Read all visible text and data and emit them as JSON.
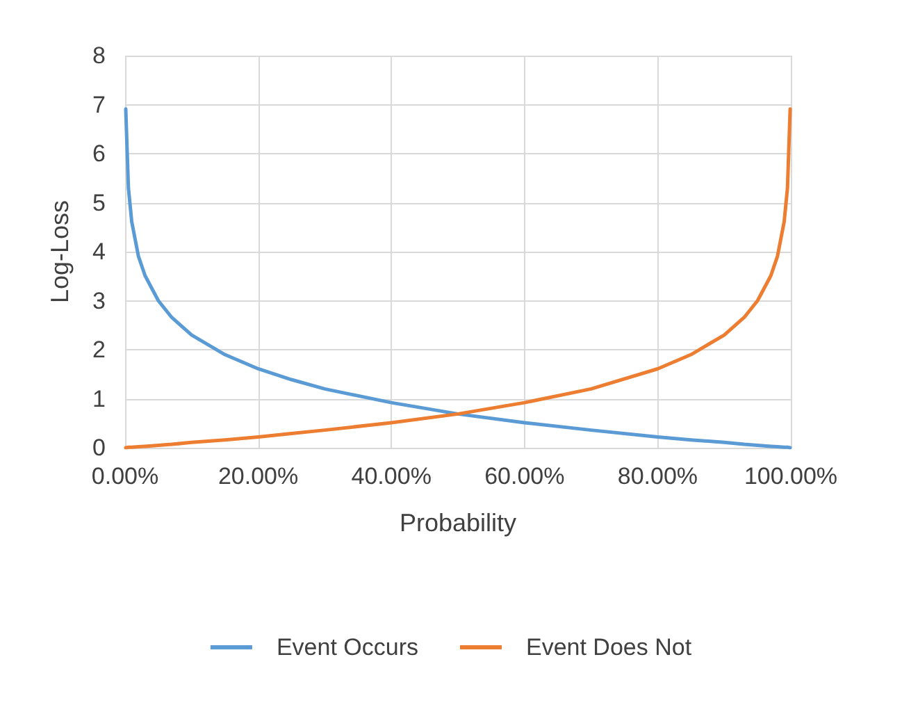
{
  "chart_data": {
    "type": "line",
    "xlabel": "Probability",
    "ylabel": "Log-Loss",
    "x": [
      0.1,
      0.5,
      1,
      2,
      3,
      5,
      7,
      10,
      15,
      20,
      25,
      30,
      40,
      50,
      60,
      70,
      80,
      85,
      90,
      93,
      95,
      97,
      98,
      99,
      99.5,
      99.9
    ],
    "series": [
      {
        "name": "Event Occurs",
        "color": "#5b9bd5",
        "values": [
          6.91,
          5.3,
          4.61,
          3.91,
          3.51,
          3.0,
          2.66,
          2.3,
          1.9,
          1.61,
          1.39,
          1.2,
          0.92,
          0.69,
          0.51,
          0.36,
          0.22,
          0.16,
          0.11,
          0.07,
          0.05,
          0.03,
          0.02,
          0.01,
          0.01,
          0.0
        ]
      },
      {
        "name": "Event Does Not",
        "color": "#ed7d31",
        "values": [
          0.0,
          0.01,
          0.01,
          0.02,
          0.03,
          0.05,
          0.07,
          0.11,
          0.16,
          0.22,
          0.29,
          0.36,
          0.51,
          0.69,
          0.92,
          1.2,
          1.61,
          1.9,
          2.3,
          2.66,
          3.0,
          3.51,
          3.91,
          4.61,
          5.3,
          6.91
        ]
      }
    ],
    "xlim": [
      0,
      100
    ],
    "xticks": [
      {
        "value": 0,
        "label": "0.00%"
      },
      {
        "value": 20,
        "label": "20.00%"
      },
      {
        "value": 40,
        "label": "40.00%"
      },
      {
        "value": 60,
        "label": "60.00%"
      },
      {
        "value": 80,
        "label": "80.00%"
      },
      {
        "value": 100,
        "label": "100.00%"
      }
    ],
    "ylim": [
      0,
      8
    ],
    "yticks": [
      0,
      1,
      2,
      3,
      4,
      5,
      6,
      7,
      8
    ],
    "grid": true,
    "legend": "bottom",
    "marker": "none",
    "line_style": "solid"
  }
}
